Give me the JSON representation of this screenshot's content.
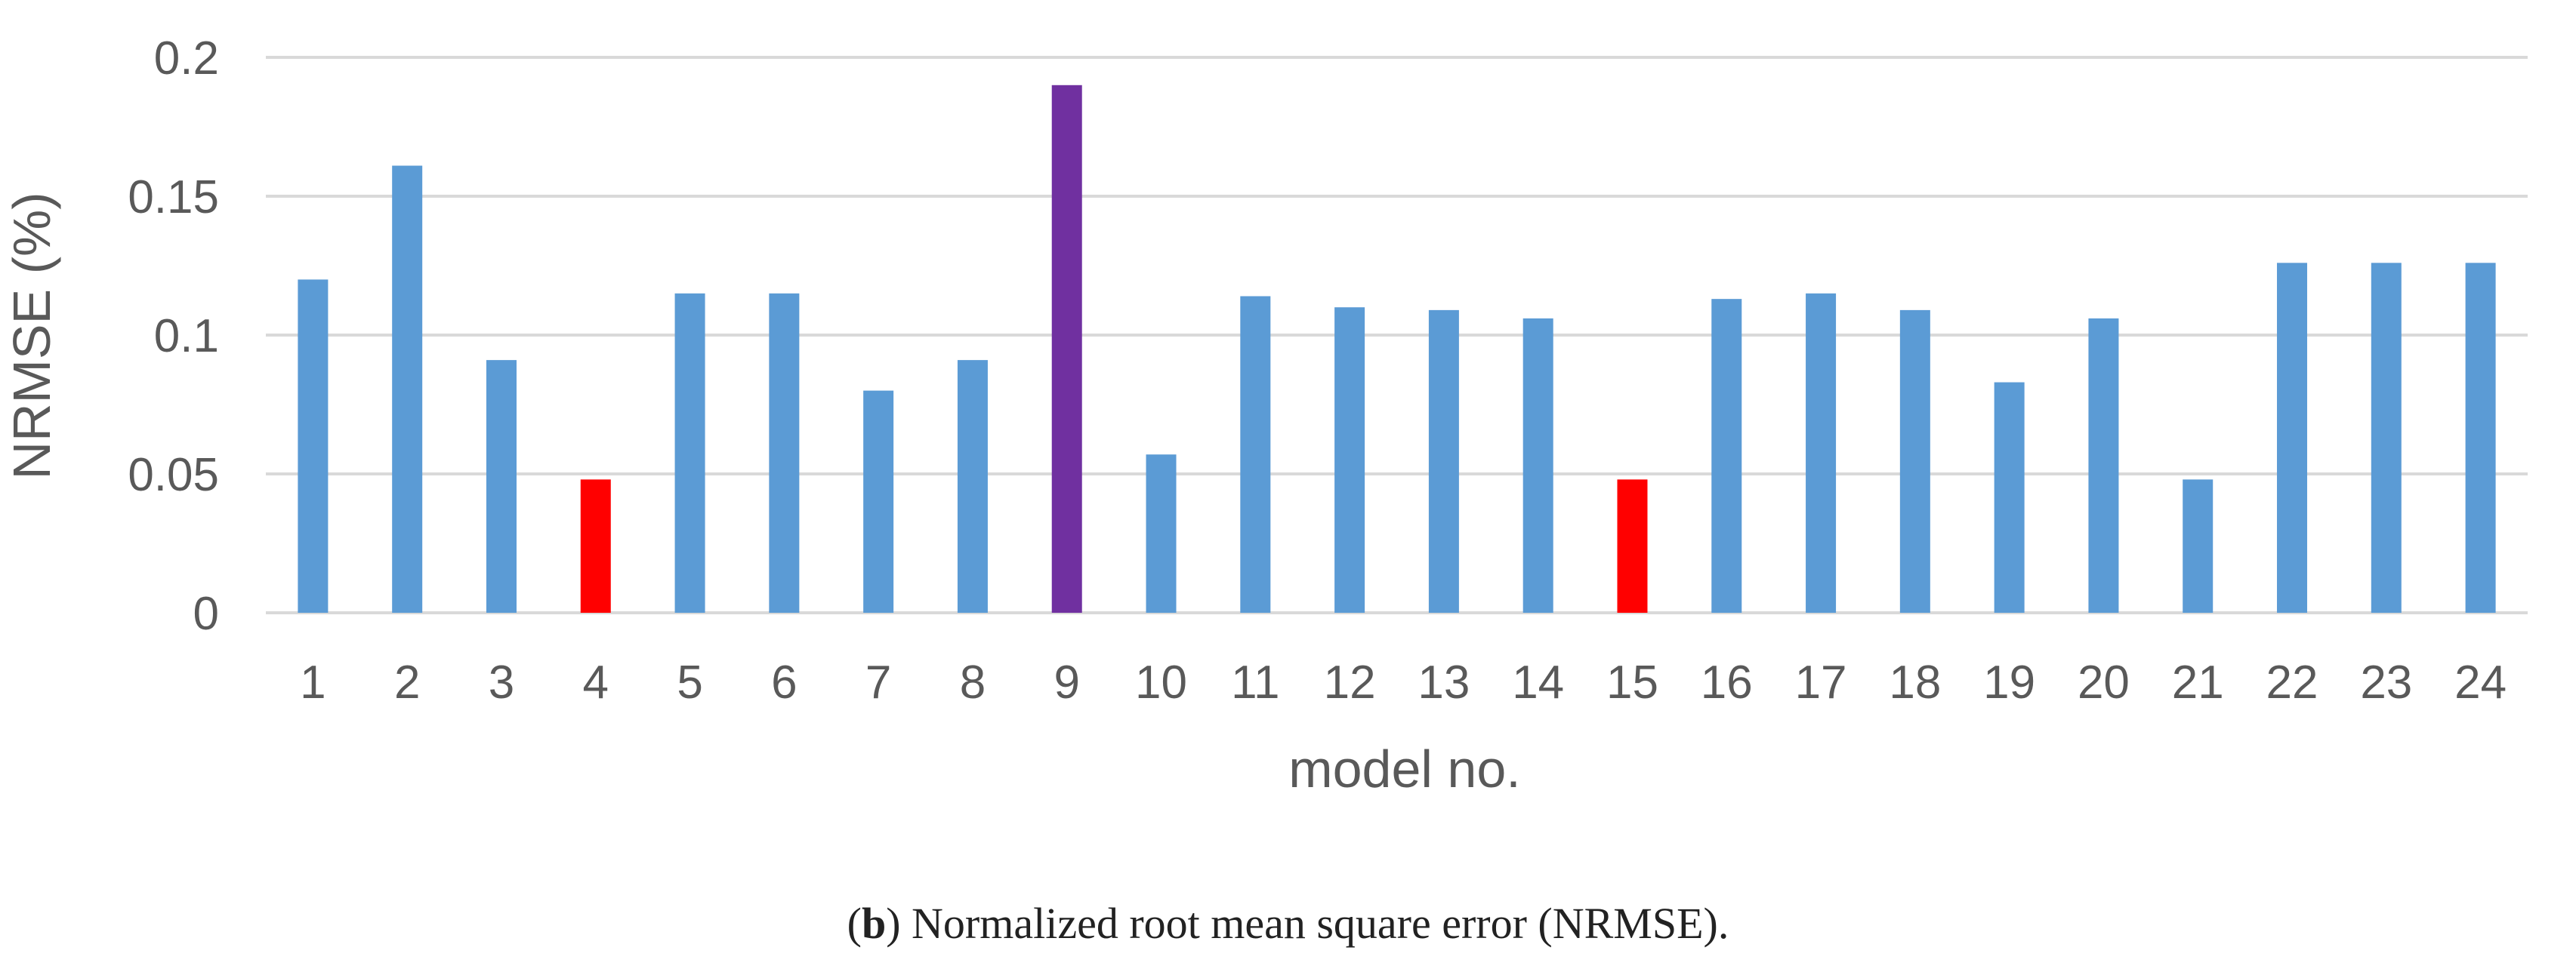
{
  "chart_data": {
    "type": "bar",
    "xlabel": "model no.",
    "ylabel": "NRMSE (%)",
    "ylim": [
      0,
      0.2
    ],
    "yticks": [
      0,
      0.05,
      0.1,
      0.15,
      0.2
    ],
    "ytick_labels": [
      "0",
      "0.05",
      "0.1",
      "0.15",
      "0.2"
    ],
    "grid": true,
    "categories": [
      "1",
      "2",
      "3",
      "4",
      "5",
      "6",
      "7",
      "8",
      "9",
      "10",
      "11",
      "12",
      "13",
      "14",
      "15",
      "16",
      "17",
      "18",
      "19",
      "20",
      "21",
      "22",
      "23",
      "24"
    ],
    "values": [
      0.12,
      0.161,
      0.091,
      0.048,
      0.115,
      0.115,
      0.08,
      0.091,
      0.19,
      0.057,
      0.114,
      0.11,
      0.109,
      0.106,
      0.048,
      0.113,
      0.115,
      0.109,
      0.083,
      0.106,
      0.048,
      0.126,
      0.126,
      0.126
    ],
    "bar_colors": [
      "#5b9bd5",
      "#5b9bd5",
      "#5b9bd5",
      "#ff0000",
      "#5b9bd5",
      "#5b9bd5",
      "#5b9bd5",
      "#5b9bd5",
      "#7030a0",
      "#5b9bd5",
      "#5b9bd5",
      "#5b9bd5",
      "#5b9bd5",
      "#5b9bd5",
      "#ff0000",
      "#5b9bd5",
      "#5b9bd5",
      "#5b9bd5",
      "#5b9bd5",
      "#5b9bd5",
      "#5b9bd5",
      "#5b9bd5",
      "#5b9bd5",
      "#5b9bd5"
    ],
    "colors": {
      "default_bar": "#5b9bd5",
      "lowest_bar": "#ff0000",
      "highest_bar": "#7030a0",
      "grid": "#d9d9d9",
      "axis_text": "#595959"
    }
  },
  "caption": {
    "label": "b",
    "text": "Normalized root mean square error (NRMSE)."
  }
}
